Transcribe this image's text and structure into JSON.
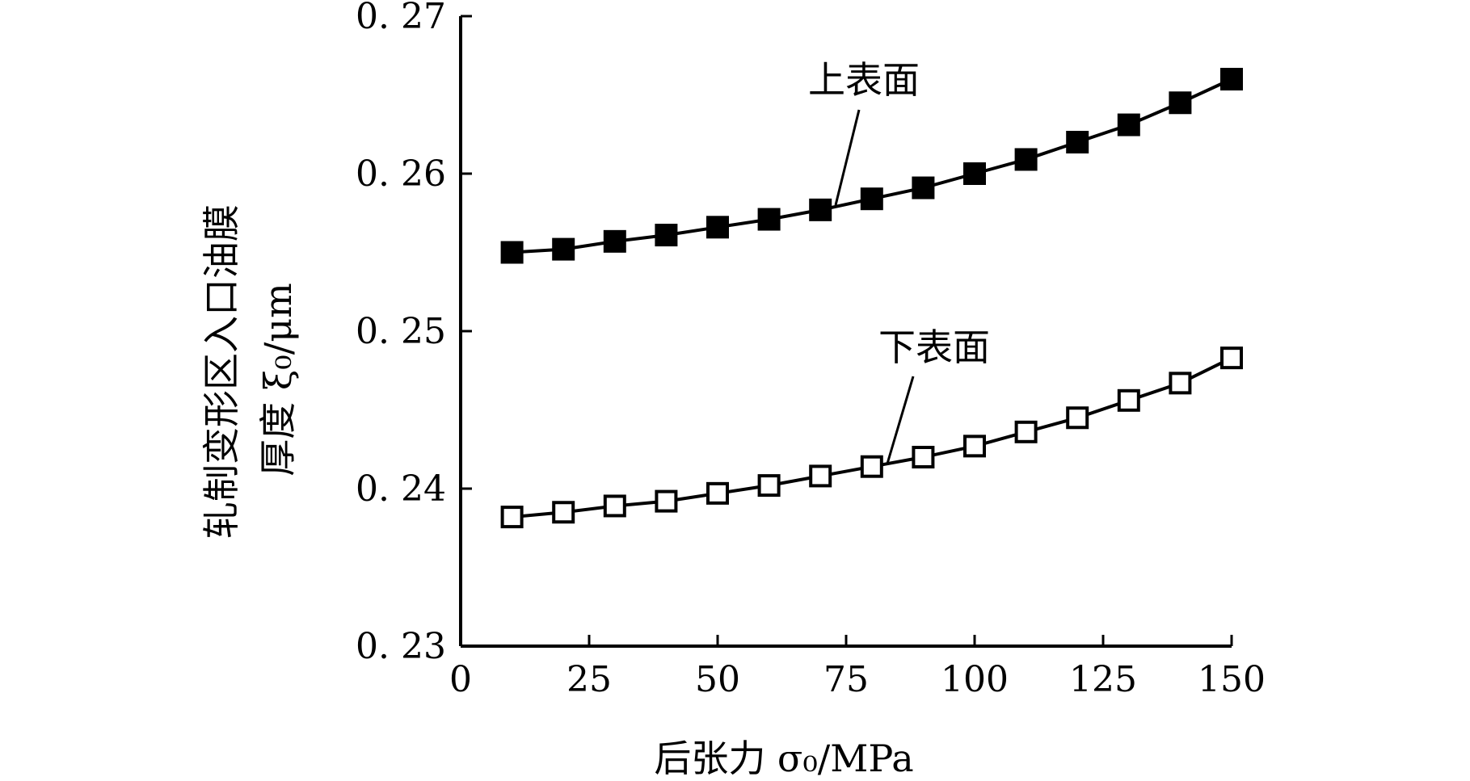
{
  "chart_data": {
    "type": "line",
    "xlabel": "后张力 σ₀/MPa",
    "ylabel_line1": "轧制变形区入口油膜",
    "ylabel_line2": "厚度 ξ₀/μm",
    "xlim": [
      0,
      150
    ],
    "ylim": [
      0.23,
      0.27
    ],
    "x_ticks": [
      0,
      25,
      50,
      75,
      100,
      125,
      150
    ],
    "x_tick_labels": [
      "0",
      "25",
      "50",
      "75",
      "100",
      "125",
      "150"
    ],
    "y_ticks": [
      0.23,
      0.24,
      0.25,
      0.26,
      0.27
    ],
    "y_tick_labels": [
      "0. 23",
      "0. 24",
      "0. 25",
      "0. 26",
      "0. 27"
    ],
    "grid": false,
    "x": [
      10,
      20,
      30,
      40,
      50,
      60,
      70,
      80,
      90,
      100,
      110,
      120,
      130,
      140,
      150
    ],
    "series": [
      {
        "name": "上表面",
        "marker": "filled-square",
        "color": "#000000",
        "values": [
          0.255,
          0.2552,
          0.2557,
          0.2561,
          0.2566,
          0.2571,
          0.2577,
          0.2584,
          0.2591,
          0.26,
          0.2609,
          0.262,
          0.2631,
          0.2645,
          0.266
        ]
      },
      {
        "name": "下表面",
        "marker": "open-square",
        "color": "#000000",
        "values": [
          0.2382,
          0.2385,
          0.2389,
          0.2392,
          0.2397,
          0.2402,
          0.2408,
          0.2414,
          0.242,
          0.2427,
          0.2436,
          0.2445,
          0.2456,
          0.2467,
          0.2483
        ]
      }
    ]
  }
}
